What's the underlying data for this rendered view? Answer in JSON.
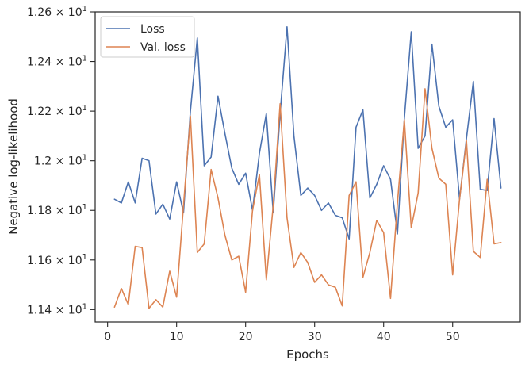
{
  "chart_data": {
    "type": "line",
    "xlabel": "Epochs",
    "ylabel": "Negative log-likelihood",
    "xlim": [
      -1.8,
      59.8
    ],
    "ylim": [
      11.35,
      12.6
    ],
    "x_ticks": [
      0,
      10,
      20,
      30,
      40,
      50
    ],
    "x_tick_labels": [
      "0",
      "10",
      "20",
      "30",
      "40",
      "50"
    ],
    "y_ticks": [
      11.4,
      11.6,
      11.8,
      12.0,
      12.2,
      12.4,
      12.6
    ],
    "y_tick_labels": [
      {
        "mantissa": "1.14",
        "base": "10",
        "exp": "1"
      },
      {
        "mantissa": "1.16",
        "base": "10",
        "exp": "1"
      },
      {
        "mantissa": "1.18",
        "base": "10",
        "exp": "1"
      },
      {
        "mantissa": "1.2",
        "base": "10",
        "exp": "1"
      },
      {
        "mantissa": "1.22",
        "base": "10",
        "exp": "1"
      },
      {
        "mantissa": "1.24",
        "base": "10",
        "exp": "1"
      },
      {
        "mantissa": "1.26",
        "base": "10",
        "exp": "1"
      }
    ],
    "y_times": "×",
    "legend_position": "upper-left",
    "grid": false,
    "x": [
      1,
      2,
      3,
      4,
      5,
      6,
      7,
      8,
      9,
      10,
      11,
      12,
      13,
      14,
      15,
      16,
      17,
      18,
      19,
      20,
      21,
      22,
      23,
      24,
      25,
      26,
      27,
      28,
      29,
      30,
      31,
      32,
      33,
      34,
      35,
      36,
      37,
      38,
      39,
      40,
      41,
      42,
      43,
      44,
      45,
      46,
      47,
      48,
      49,
      50,
      51,
      52,
      53,
      54,
      55,
      56,
      57
    ],
    "series": [
      {
        "name": "Loss",
        "color": "#4c72b0",
        "values": [
          11.845,
          11.83,
          11.915,
          11.83,
          12.01,
          12.0,
          11.785,
          11.825,
          11.765,
          11.915,
          11.79,
          12.2,
          12.495,
          11.98,
          12.015,
          12.26,
          12.11,
          11.97,
          11.905,
          11.95,
          11.8,
          12.03,
          12.19,
          11.79,
          12.19,
          12.54,
          12.1,
          11.86,
          11.89,
          11.86,
          11.8,
          11.83,
          11.78,
          11.77,
          11.685,
          12.135,
          12.205,
          11.85,
          11.905,
          11.98,
          11.925,
          11.705,
          12.17,
          12.52,
          12.05,
          12.1,
          12.47,
          12.22,
          12.135,
          12.165,
          11.845,
          12.09,
          12.32,
          11.885,
          11.88,
          12.17,
          11.89
        ]
      },
      {
        "name": "Val. loss",
        "color": "#dd8452",
        "values": [
          11.41,
          11.485,
          11.42,
          11.655,
          11.65,
          11.405,
          11.44,
          11.41,
          11.555,
          11.45,
          11.82,
          12.18,
          11.63,
          11.665,
          11.965,
          11.85,
          11.7,
          11.6,
          11.615,
          11.47,
          11.8,
          11.945,
          11.52,
          11.82,
          12.23,
          11.77,
          11.57,
          11.63,
          11.59,
          11.51,
          11.54,
          11.5,
          11.49,
          11.415,
          11.86,
          11.915,
          11.53,
          11.63,
          11.76,
          11.71,
          11.445,
          11.83,
          12.165,
          11.73,
          11.87,
          12.29,
          12.05,
          11.93,
          11.905,
          11.54,
          11.845,
          12.08,
          11.635,
          11.61,
          11.925,
          11.665,
          11.67
        ]
      }
    ]
  }
}
